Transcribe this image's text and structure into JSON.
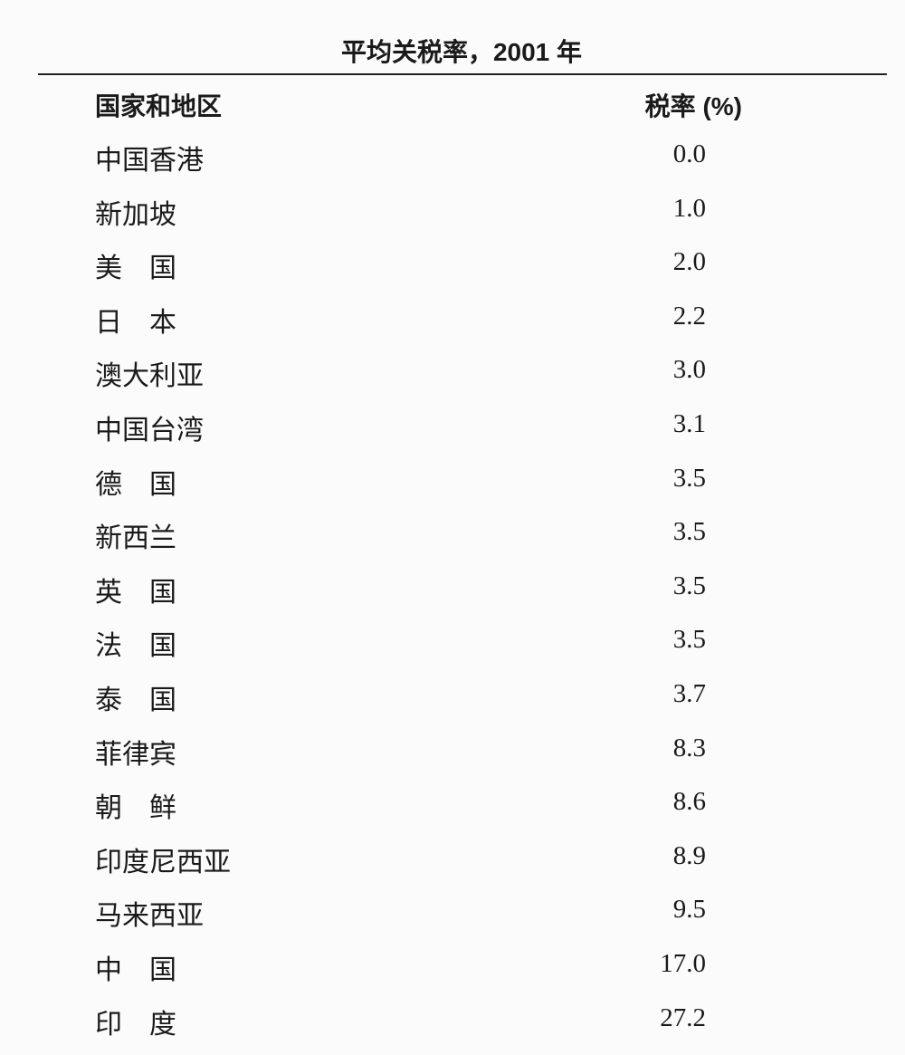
{
  "title": "平均关税率，2001 年",
  "table": {
    "headers": {
      "name": "国家和地区",
      "value": "税率 (%)"
    },
    "rows": [
      {
        "name": "中国香港",
        "value": "0.0"
      },
      {
        "name": "新加坡",
        "value": "1.0"
      },
      {
        "name": "美　国",
        "value": "2.0"
      },
      {
        "name": "日　本",
        "value": "2.2"
      },
      {
        "name": "澳大利亚",
        "value": "3.0"
      },
      {
        "name": "中国台湾",
        "value": "3.1"
      },
      {
        "name": "德　国",
        "value": "3.5"
      },
      {
        "name": "新西兰",
        "value": "3.5"
      },
      {
        "name": "英　国",
        "value": "3.5"
      },
      {
        "name": "法　国",
        "value": "3.5"
      },
      {
        "name": "泰　国",
        "value": "3.7"
      },
      {
        "name": "菲律宾",
        "value": "8.3"
      },
      {
        "name": "朝　鲜",
        "value": "8.6"
      },
      {
        "name": "印度尼西亚",
        "value": "8.9"
      },
      {
        "name": "马来西亚",
        "value": "9.5"
      },
      {
        "name": "中　国",
        "value": "17.0"
      },
      {
        "name": "印　度",
        "value": "27.2"
      }
    ]
  }
}
